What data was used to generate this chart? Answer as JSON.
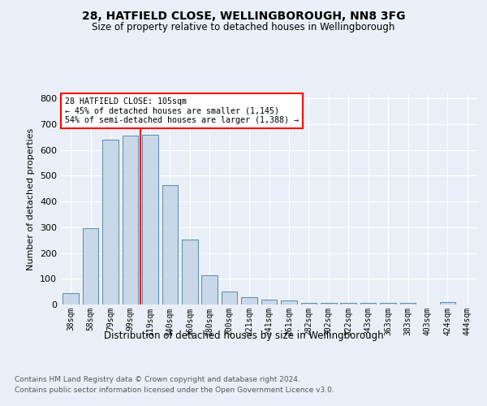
{
  "title1": "28, HATFIELD CLOSE, WELLINGBOROUGH, NN8 3FG",
  "title2": "Size of property relative to detached houses in Wellingborough",
  "xlabel": "Distribution of detached houses by size in Wellingborough",
  "ylabel": "Number of detached properties",
  "categories": [
    "38sqm",
    "58sqm",
    "79sqm",
    "99sqm",
    "119sqm",
    "140sqm",
    "160sqm",
    "180sqm",
    "200sqm",
    "221sqm",
    "241sqm",
    "261sqm",
    "282sqm",
    "302sqm",
    "322sqm",
    "343sqm",
    "363sqm",
    "383sqm",
    "403sqm",
    "424sqm",
    "444sqm"
  ],
  "values": [
    45,
    295,
    640,
    655,
    660,
    465,
    252,
    113,
    52,
    29,
    20,
    15,
    6,
    5,
    5,
    7,
    5,
    5,
    0,
    8,
    0
  ],
  "bar_color": "#c8d8e8",
  "bar_edge_color": "#5a8ab0",
  "red_line_x": 3.5,
  "annotation_text_line1": "28 HATFIELD CLOSE: 105sqm",
  "annotation_text_line2": "← 45% of detached houses are smaller (1,145)",
  "annotation_text_line3": "54% of semi-detached houses are larger (1,388) →",
  "footer1": "Contains HM Land Registry data © Crown copyright and database right 2024.",
  "footer2": "Contains public sector information licensed under the Open Government Licence v3.0.",
  "bg_color": "#eaeff7",
  "plot_bg_color": "#eaeff7",
  "ylim": [
    0,
    820
  ],
  "yticks": [
    0,
    100,
    200,
    300,
    400,
    500,
    600,
    700,
    800
  ]
}
